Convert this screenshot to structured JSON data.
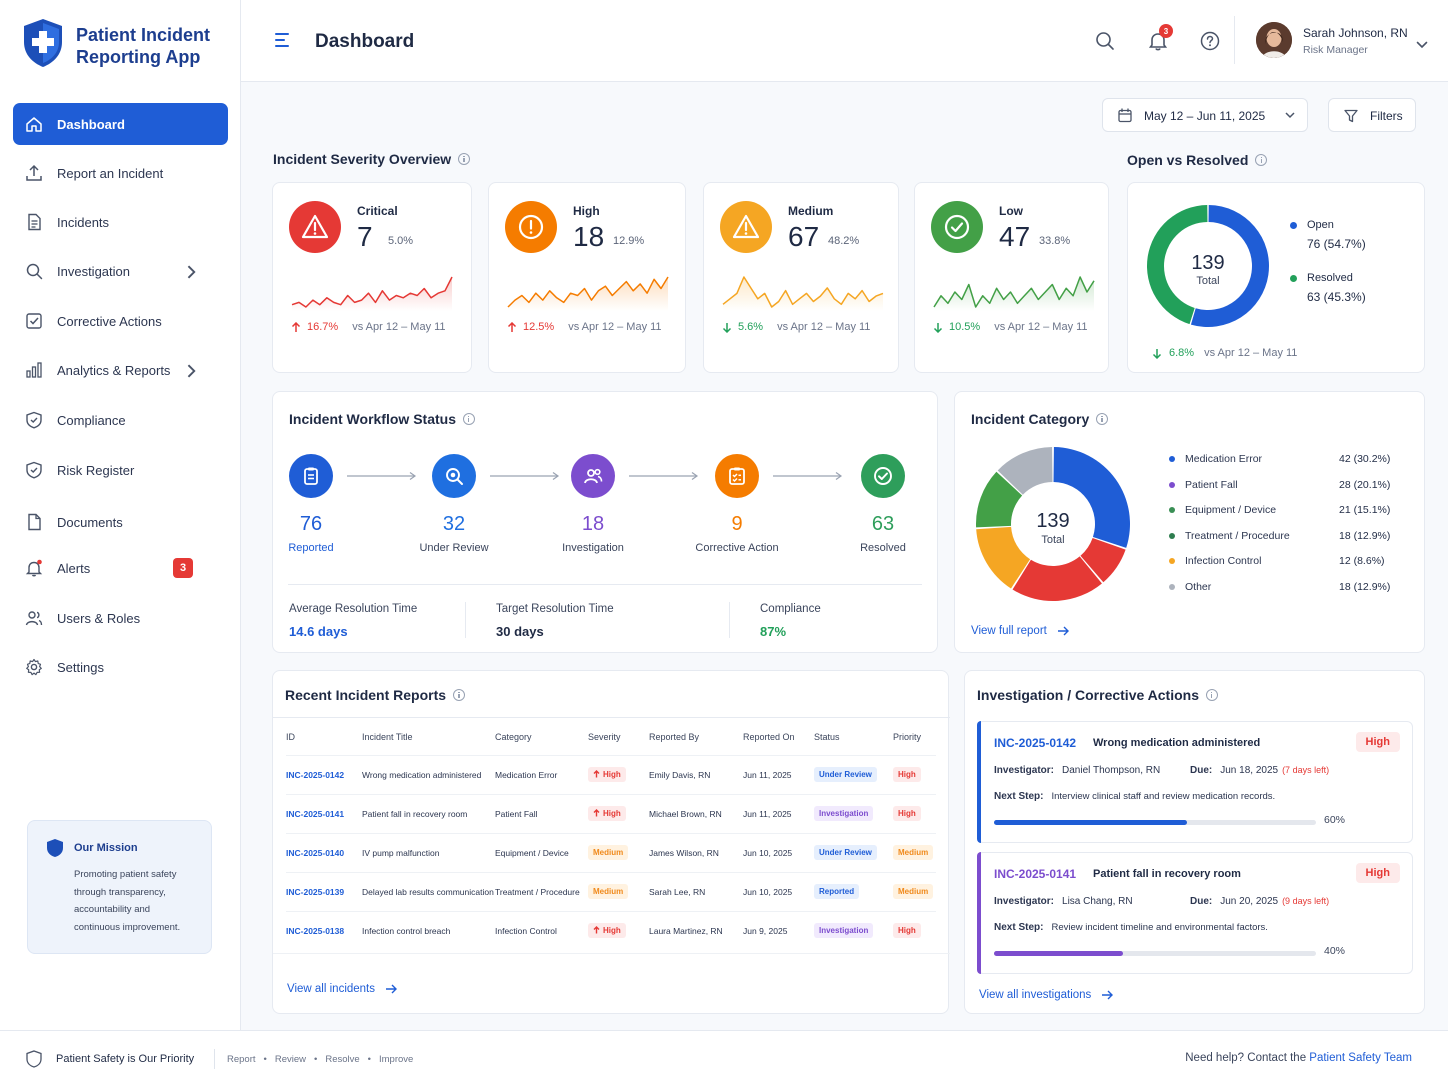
{
  "brand": {
    "line1": "Patient Incident",
    "line2": "Reporting App"
  },
  "header": {
    "page_title": "Dashboard",
    "notifications_count": "3",
    "user_name": "Sarah Johnson, RN",
    "user_role": "Risk Manager"
  },
  "sidebar": {
    "items": [
      {
        "label": "Dashboard",
        "icon": "home-icon"
      },
      {
        "label": "Report an Incident",
        "icon": "upload-icon"
      },
      {
        "label": "Incidents",
        "icon": "document-icon"
      },
      {
        "label": "Investigation",
        "icon": "search-icon"
      },
      {
        "label": "Corrective Actions",
        "icon": "checkbox-icon"
      },
      {
        "label": "Analytics & Reports",
        "icon": "bar-chart-icon"
      },
      {
        "label": "Compliance",
        "icon": "shield-check-icon"
      },
      {
        "label": "Risk Register",
        "icon": "shield-check-icon"
      },
      {
        "label": "Documents",
        "icon": "file-icon"
      },
      {
        "label": "Alerts",
        "icon": "bell-icon",
        "badge": "3"
      },
      {
        "label": "Users & Roles",
        "icon": "users-icon"
      },
      {
        "label": "Settings",
        "icon": "gear-icon"
      }
    ],
    "mission": {
      "title": "Our Mission",
      "text_lines": [
        "Promoting patient safety",
        "through transparency,",
        "accountability and",
        "continuous improvement."
      ]
    }
  },
  "toolbar": {
    "date_range": "May 12 – Jun 11, 2025",
    "filters_label": "Filters"
  },
  "severity": {
    "title": "Incident Severity Overview",
    "cards": [
      {
        "label": "Critical",
        "count": "7",
        "pct": "5.0%",
        "trend": "16.7%",
        "trend_dir": "up",
        "compare": "vs Apr 12 – May 11",
        "color": "#e53935",
        "trend_color": "#e53935",
        "spark": [
          8,
          9,
          7,
          10,
          8,
          11,
          9,
          8,
          12,
          9,
          10,
          13,
          9,
          14,
          10,
          12,
          11,
          13,
          12,
          15,
          11,
          13,
          14,
          20
        ]
      },
      {
        "label": "High",
        "count": "18",
        "pct": "12.9%",
        "trend": "12.5%",
        "trend_dir": "up",
        "compare": "vs Apr 12 – May 11",
        "color": "#f57c00",
        "trend_color": "#e53935",
        "spark": [
          6,
          9,
          11,
          8,
          12,
          9,
          13,
          10,
          8,
          12,
          11,
          14,
          9,
          13,
          15,
          11,
          14,
          17,
          13,
          16,
          12,
          18,
          14,
          19
        ]
      },
      {
        "label": "Medium",
        "count": "67",
        "pct": "48.2%",
        "trend": "5.6%",
        "trend_dir": "down",
        "compare": "vs Apr 12 – May 11",
        "color": "#f5a623",
        "trend_color": "#22a05a",
        "spark": [
          10,
          12,
          14,
          20,
          16,
          12,
          14,
          9,
          11,
          15,
          10,
          12,
          14,
          11,
          13,
          16,
          12,
          10,
          14,
          12,
          15,
          11,
          13,
          14
        ]
      },
      {
        "label": "Low",
        "count": "47",
        "pct": "33.8%",
        "trend": "10.5%",
        "trend_dir": "down",
        "compare": "vs Apr 12 – May 11",
        "color": "#43a047",
        "trend_color": "#22a05a",
        "spark": [
          10,
          13,
          11,
          14,
          12,
          16,
          10,
          13,
          11,
          15,
          12,
          14,
          11,
          13,
          15,
          12,
          14,
          16,
          12,
          15,
          13,
          18,
          14,
          17
        ]
      }
    ]
  },
  "open_resolved": {
    "title": "Open vs Resolved",
    "total": "139",
    "total_label": "Total",
    "items": [
      {
        "label": "Open",
        "value": "76 (54.7%)",
        "color": "#1f5dd6",
        "fraction": 0.547
      },
      {
        "label": "Resolved",
        "value": "63 (45.3%)",
        "color": "#22a05a",
        "fraction": 0.453
      }
    ],
    "trend": "6.8%",
    "compare": "vs Apr 12 – May 11"
  },
  "workflow": {
    "title": "Incident Workflow Status",
    "steps": [
      {
        "count": "76",
        "label": "Reported",
        "color": "#1f5dd6",
        "icon": "clipboard-icon"
      },
      {
        "count": "32",
        "label": "Under Review",
        "color": "#1f6fe0",
        "icon": "magnifier-icon"
      },
      {
        "count": "18",
        "label": "Investigation",
        "color": "#7c4dce",
        "icon": "people-icon"
      },
      {
        "count": "9",
        "label": "Corrective Action",
        "color": "#f57c00",
        "icon": "checklist-icon"
      },
      {
        "count": "63",
        "label": "Resolved",
        "color": "#2e9e5b",
        "icon": "check-circle-icon"
      }
    ],
    "metrics": [
      {
        "label": "Average Resolution Time",
        "value": "14.6 days",
        "color": "#1f5dd6"
      },
      {
        "label": "Target Resolution Time",
        "value": "30 days",
        "color": "#1f2a44"
      },
      {
        "label": "Compliance",
        "value": "87%",
        "color": "#22a05a"
      }
    ]
  },
  "category": {
    "title": "Incident Category",
    "total": "139",
    "total_label": "Total",
    "items": [
      {
        "label": "Medication Error",
        "value": "42 (30.2%)",
        "count": 42,
        "color": "#1f5dd6"
      },
      {
        "label": "Patient Fall",
        "value": "28 (20.1%)",
        "count": 28,
        "color": "#7c4dce"
      },
      {
        "label": "Equipment / Device",
        "value": "21 (15.1%)",
        "count": 21,
        "color": "#3a8f55"
      },
      {
        "label": "Treatment / Procedure",
        "value": "18 (12.9%)",
        "count": 18,
        "color": "#2e7d4f"
      },
      {
        "label": "Infection Control",
        "value": "12 (8.6%)",
        "count": 12,
        "color": "#f5a623"
      },
      {
        "label": "Other",
        "value": "18 (12.9%)",
        "count": 18,
        "color": "#adb3bd"
      }
    ],
    "donut_order": [
      {
        "count": 42,
        "color": "#1f5dd6"
      },
      {
        "count": 12,
        "color": "#e53935"
      },
      {
        "count": 28,
        "color": "#e53935"
      },
      {
        "count": 21,
        "color": "#f5a623"
      },
      {
        "count": 18,
        "color": "#43a047"
      },
      {
        "count": 18,
        "color": "#adb3bd"
      }
    ],
    "link": "View full report"
  },
  "recent": {
    "title": "Recent Incident Reports",
    "columns": [
      "ID",
      "Incident Title",
      "Category",
      "Severity",
      "Reported By",
      "Reported On",
      "Status",
      "Priority"
    ],
    "rows": [
      {
        "id": "INC-2025-0142",
        "title": "Wrong medication administered",
        "category": "Medication Error",
        "severity": "High",
        "sev_class": "pill-high",
        "by": "Emily Davis, RN",
        "on": "Jun 11, 2025",
        "status": "Under Review",
        "status_class": "pill-rev",
        "priority": "High",
        "prio_class": "pill-high"
      },
      {
        "id": "INC-2025-0141",
        "title": "Patient fall in recovery room",
        "category": "Patient Fall",
        "severity": "High",
        "sev_class": "pill-high",
        "by": "Michael Brown, RN",
        "on": "Jun 11, 2025",
        "status": "Investigation",
        "status_class": "pill-inv",
        "priority": "High",
        "prio_class": "pill-high"
      },
      {
        "id": "INC-2025-0140",
        "title": "IV pump malfunction",
        "category": "Equipment / Device",
        "severity": "Medium",
        "sev_class": "pill-med",
        "by": "James Wilson, RN",
        "on": "Jun 10, 2025",
        "status": "Under Review",
        "status_class": "pill-rev",
        "priority": "Medium",
        "prio_class": "pill-med"
      },
      {
        "id": "INC-2025-0139",
        "title": "Delayed lab results communication",
        "category": "Treatment / Procedure",
        "severity": "Medium",
        "sev_class": "pill-med",
        "by": "Sarah Lee, RN",
        "on": "Jun 10, 2025",
        "status": "Reported",
        "status_class": "pill-rep",
        "priority": "Medium",
        "prio_class": "pill-med"
      },
      {
        "id": "INC-2025-0138",
        "title": "Infection control breach",
        "category": "Infection Control",
        "severity": "High",
        "sev_class": "pill-high",
        "by": "Laura Martinez, RN",
        "on": "Jun 9, 2025",
        "status": "Investigation",
        "status_class": "pill-inv",
        "priority": "High",
        "prio_class": "pill-high"
      }
    ],
    "link": "View all incidents"
  },
  "investigations": {
    "title": "Investigation / Corrective Actions",
    "items": [
      {
        "id": "INC-2025-0142",
        "title": "Wrong medication administered",
        "priority": "High",
        "investigator_label": "Investigator:",
        "investigator": "Daniel Thompson, RN",
        "due_label": "Due:",
        "due": "Jun 18, 2025",
        "days_left": "(7 days left)",
        "next_label": "Next Step:",
        "next": "Interview clinical staff and review medication records.",
        "progress": 0.6,
        "progress_text": "60%",
        "color": "#1f5dd6"
      },
      {
        "id": "INC-2025-0141",
        "title": "Patient fall in recovery room",
        "priority": "High",
        "investigator_label": "Investigator:",
        "investigator": "Lisa Chang, RN",
        "due_label": "Due:",
        "due": "Jun 20, 2025",
        "days_left": "(9 days left)",
        "next_label": "Next Step:",
        "next": "Review incident timeline and environmental factors.",
        "progress": 0.4,
        "progress_text": "40%",
        "color": "#7c4dce"
      }
    ],
    "link": "View all investigations"
  },
  "footer": {
    "tagline": "Patient Safety is Our Priority",
    "steps": [
      "Report",
      "Review",
      "Resolve",
      "Improve"
    ],
    "help_prefix": "Need help? Contact the ",
    "help_link": "Patient Safety Team"
  }
}
